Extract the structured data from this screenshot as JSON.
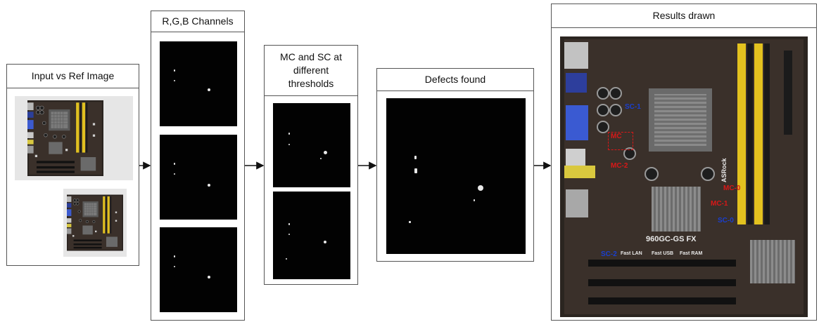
{
  "panels": {
    "input": {
      "title": "Input vs Ref Image"
    },
    "channels": {
      "title": "R,G,B Channels"
    },
    "thresholds": {
      "title": "MC and SC at different thresholds"
    },
    "defects": {
      "title": "Defects found"
    },
    "results": {
      "title": "Results drawn"
    }
  },
  "annotations": [
    {
      "label": "SC-1",
      "color": "#1a3fd0"
    },
    {
      "label": "MC",
      "color": "#d81818"
    },
    {
      "label": "MC-2",
      "color": "#d81818"
    },
    {
      "label": "MC-0",
      "color": "#d81818"
    },
    {
      "label": "MC-1",
      "color": "#d81818"
    },
    {
      "label": "SC-0",
      "color": "#1a3fd0"
    },
    {
      "label": "SC-2",
      "color": "#1a3fd0"
    }
  ],
  "board_text": {
    "model": "960GC-GS FX",
    "brand": "ASRock",
    "fast_lan": "Fast LAN",
    "fast_usb": "Fast USB",
    "fast_ram": "Fast RAM"
  }
}
